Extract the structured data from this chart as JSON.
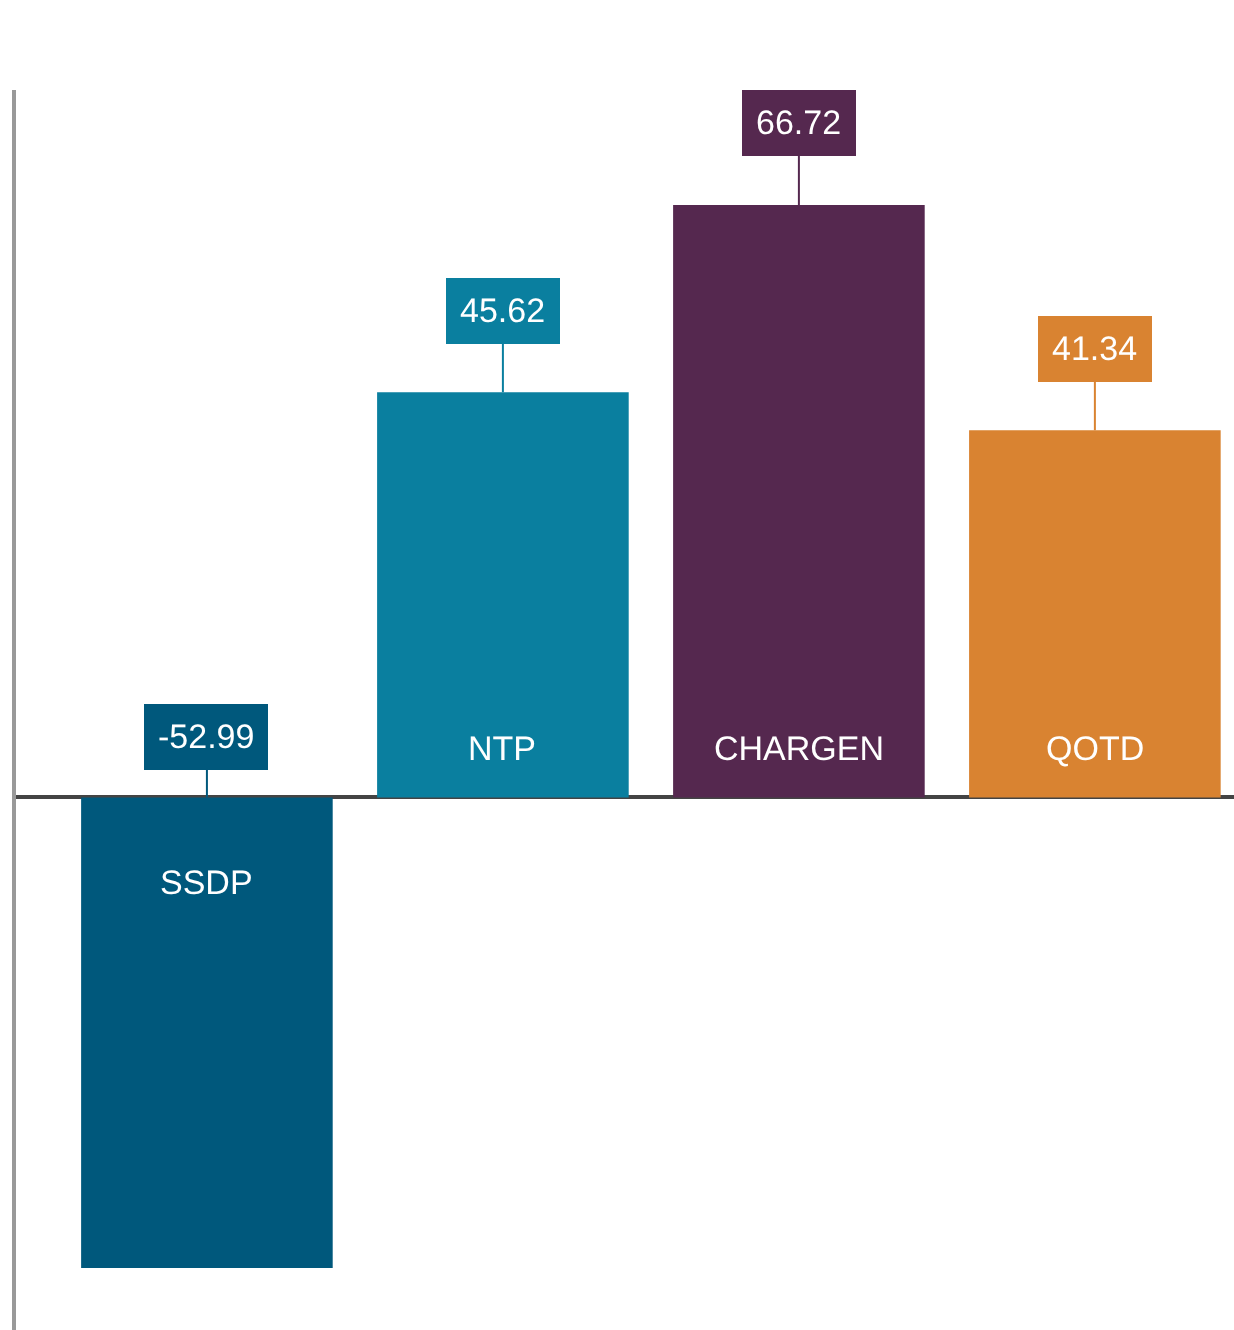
{
  "chart_data": {
    "type": "bar",
    "categories": [
      "SSDP",
      "NTP",
      "CHARGEN",
      "QOTD"
    ],
    "values": [
      -52.99,
      45.62,
      66.72,
      41.34
    ],
    "colors": [
      "#00587c",
      "#0a7f9f",
      "#55284f",
      "#d98331"
    ],
    "data_labels": true,
    "tick_labels": false
  }
}
